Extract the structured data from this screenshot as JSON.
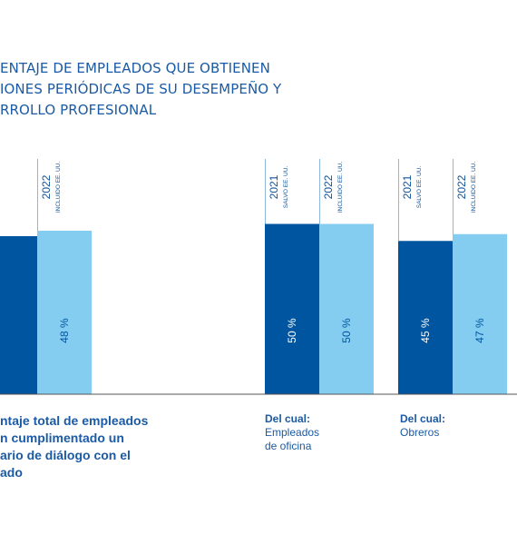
{
  "title_lines": [
    "ENTAJE DE EMPLEADOS QUE OBTIENEN",
    "IONES PERIÓDICAS DE SU DESEMPEÑO Y",
    "RROLLO PROFESIONAL"
  ],
  "colors": {
    "series_2021": "#0055a0",
    "series_2022": "#84cdf0",
    "text": "#1b5aa4",
    "axis": "#555555",
    "connector": "#8fb8df"
  },
  "chart_data": {
    "type": "bar",
    "categories": [
      "Porcentaje total de empleados que han cumplimentado un formulario de diálogo con el empleado",
      "Del cual: Empleados de oficina",
      "Del cual: Obreros"
    ],
    "category_label_lines": [
      [
        {
          "text": "ntaje total de empleados",
          "bold": true
        },
        {
          "text": "n cumplimentado un",
          "bold": true
        },
        {
          "text": "ario de diálogo con el",
          "bold": true
        },
        {
          "text": "ado",
          "bold": true
        }
      ],
      [
        {
          "text": "Del cual:",
          "bold": true
        },
        {
          "text": "Empleados",
          "bold": false
        },
        {
          "text": "de oficina",
          "bold": false
        }
      ],
      [
        {
          "text": "Del cual:",
          "bold": true
        },
        {
          "text": "Obreros",
          "bold": false
        }
      ]
    ],
    "series": [
      {
        "name": "2021",
        "scope": "SALVO EE. UU.",
        "values": [
          null,
          50,
          45
        ],
        "value_labels": [
          "",
          "50 %",
          "45 %"
        ]
      },
      {
        "name": "2022",
        "scope": "INCLUIDO EE. UU.",
        "values": [
          48,
          50,
          47
        ],
        "value_labels": [
          "48 %",
          "50 %",
          "47 %"
        ]
      }
    ],
    "ylim": [
      0,
      76
    ],
    "legend": "year labels above each bar",
    "grid": false
  }
}
